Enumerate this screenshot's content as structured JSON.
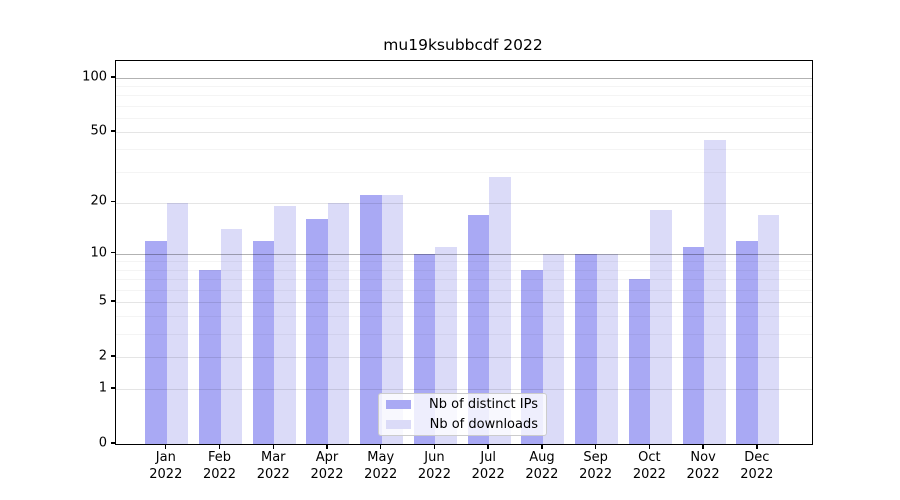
{
  "title": "mu19ksubbcdf 2022",
  "chart_data": {
    "type": "bar",
    "scale": "log1p",
    "title": "mu19ksubbcdf 2022",
    "categories": [
      "Jan 2022",
      "Feb 2022",
      "Mar 2022",
      "Apr 2022",
      "May 2022",
      "Jun 2022",
      "Jul 2022",
      "Aug 2022",
      "Sep 2022",
      "Oct 2022",
      "Nov 2022",
      "Dec 2022"
    ],
    "months": [
      "Jan",
      "Feb",
      "Mar",
      "Apr",
      "May",
      "Jun",
      "Jul",
      "Aug",
      "Sep",
      "Oct",
      "Nov",
      "Dec"
    ],
    "year": "2022",
    "series": [
      {
        "name": "Nb of distinct IPs",
        "color": "#a9a9f4",
        "values": [
          12,
          8,
          12,
          16,
          22,
          10,
          17,
          8,
          10,
          7,
          11,
          12
        ]
      },
      {
        "name": "Nb of downloads",
        "color": "#dbdbf8",
        "values": [
          20,
          14,
          19,
          20,
          22,
          11,
          28,
          10,
          10,
          18,
          45,
          17
        ]
      }
    ],
    "xlabel": "",
    "ylabel": "",
    "ylim": [
      0,
      124
    ],
    "y_ticks": [
      0,
      1,
      2,
      5,
      10,
      20,
      50,
      100
    ],
    "y_minor_ticks": [
      3,
      4,
      6,
      7,
      8,
      9,
      30,
      40,
      60,
      70,
      80,
      90
    ],
    "y_strong_gridlines": [
      10,
      100
    ],
    "grid": "both",
    "legend_position": "lower center"
  }
}
